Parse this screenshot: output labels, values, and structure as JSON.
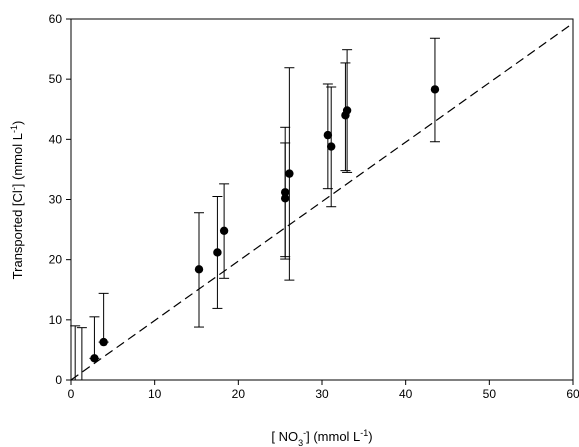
{
  "chart_data": {
    "type": "scatter",
    "xlabel": {
      "prefix": "[ NO",
      "sub": "3",
      "sup": "-",
      "suffix": "] (mmol L",
      "unit_sup": "-1",
      "close": ")"
    },
    "ylabel": {
      "prefix": "Transported [Cl",
      "sup": "-",
      "suffix": "] (mmol L",
      "unit_sup": "-1",
      "close": ")"
    },
    "xlim": [
      0,
      60
    ],
    "ylim": [
      0,
      60
    ],
    "xticks": [
      0,
      10,
      20,
      30,
      40,
      50,
      60
    ],
    "yticks": [
      0,
      10,
      20,
      30,
      40,
      50,
      60
    ],
    "grid": false,
    "points": [
      {
        "x": 2.8,
        "y": 3.6,
        "err_low": 3.6,
        "err_high": 10.5
      },
      {
        "x": 3.9,
        "y": 6.3,
        "err_low": 6.3,
        "err_high": 14.4
      },
      {
        "x": 15.3,
        "y": 18.4,
        "err_low": 8.8,
        "err_high": 27.8
      },
      {
        "x": 17.5,
        "y": 21.2,
        "err_low": 11.9,
        "err_high": 30.5
      },
      {
        "x": 18.3,
        "y": 24.8,
        "err_low": 16.9,
        "err_high": 32.6
      },
      {
        "x": 25.6,
        "y": 31.2,
        "err_low": 20.5,
        "err_high": 42.0
      },
      {
        "x": 25.6,
        "y": 30.2,
        "err_low": 20.1,
        "err_high": 39.4
      },
      {
        "x": 26.1,
        "y": 34.3,
        "err_low": 16.6,
        "err_high": 51.9
      },
      {
        "x": 30.7,
        "y": 40.7,
        "err_low": 31.8,
        "err_high": 49.2
      },
      {
        "x": 31.1,
        "y": 38.8,
        "err_low": 28.8,
        "err_high": 48.7
      },
      {
        "x": 32.8,
        "y": 44.0,
        "err_low": 34.8,
        "err_high": 52.7
      },
      {
        "x": 33.0,
        "y": 44.8,
        "err_low": 34.5,
        "err_high": 54.9
      },
      {
        "x": 43.5,
        "y": 48.3,
        "err_low": 39.6,
        "err_high": 56.8
      }
    ],
    "extra_error_bars": [
      {
        "x": 0.5,
        "low": 0.0,
        "high": 9.0
      },
      {
        "x": 1.3,
        "low": 0.0,
        "high": 8.7
      }
    ],
    "reference_line": {
      "style": "dashed",
      "x1": 0,
      "y1": 0,
      "x2": 60,
      "y2": 59.3
    },
    "colors": {
      "axis": "#000000",
      "marker": "#000000",
      "line": "#000000"
    }
  }
}
